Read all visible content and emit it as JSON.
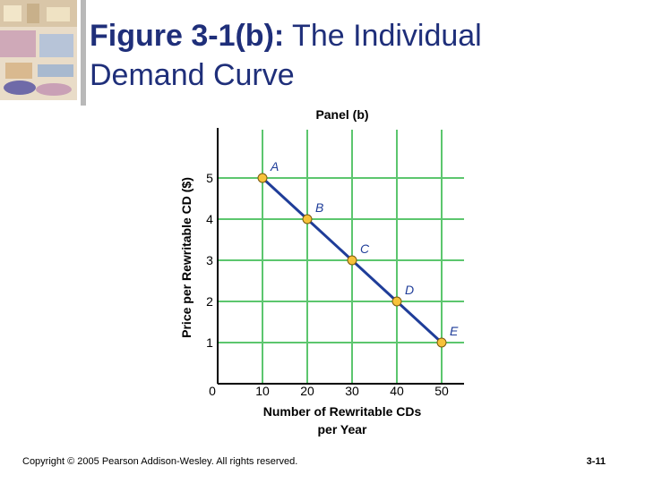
{
  "slide": {
    "title_bold": "Figure 3-1(b):",
    "title_rest_line1": " The Individual",
    "title_line2": "Demand Curve",
    "copyright": "Copyright © 2005 Pearson Addison-Wesley. All rights reserved.",
    "page_number": "3-11"
  },
  "chart_data": {
    "type": "line",
    "title": "Panel (b)",
    "xlabel": "Number of Rewritable CDs per Year",
    "xlabel_line1": "Number of Rewritable CDs",
    "xlabel_line2": "per Year",
    "ylabel": "Price per Rewritable CD ($)",
    "xlim": [
      0,
      55
    ],
    "ylim": [
      0,
      6
    ],
    "x_ticks": [
      10,
      20,
      30,
      40,
      50
    ],
    "y_ticks": [
      1,
      2,
      3,
      4,
      5
    ],
    "origin_label": "0",
    "grid": true,
    "points": [
      {
        "label": "A",
        "x": 10,
        "y": 5
      },
      {
        "label": "B",
        "x": 20,
        "y": 4
      },
      {
        "label": "C",
        "x": 30,
        "y": 3
      },
      {
        "label": "D",
        "x": 40,
        "y": 2
      },
      {
        "label": "E",
        "x": 50,
        "y": 1
      }
    ],
    "colors": {
      "line": "#1f3d99",
      "point_fill": "#f7c23a",
      "point_stroke": "#7a5a10",
      "grid": "#5cc66e"
    }
  }
}
